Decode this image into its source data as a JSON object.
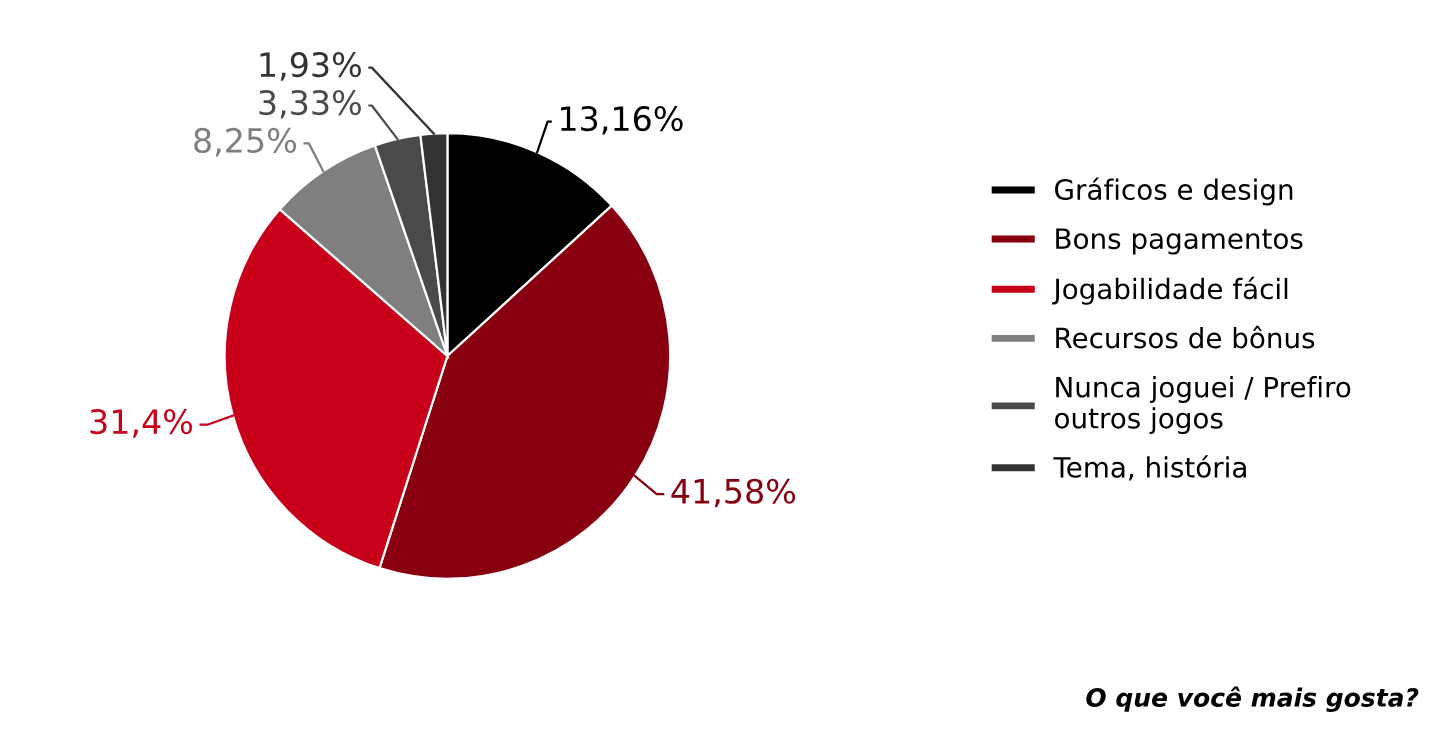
{
  "chart_data": {
    "type": "pie",
    "categories": [
      "Gráficos e design",
      "Bons pagamentos",
      "Jogabilidade fácil",
      "Recursos de bônus",
      "Nunca joguei / Prefiro\noutros jogos",
      "Tema, história"
    ],
    "values": [
      13.16,
      41.58,
      31.4,
      8.25,
      3.33,
      1.93
    ],
    "value_labels": [
      "13,16%",
      "41,58%",
      "31,4%",
      "8,25%",
      "3,33%",
      "1,93%"
    ],
    "colors": [
      "#000000",
      "#880010",
      "#c8001a",
      "#7f7f7f",
      "#4a4a4a",
      "#333333"
    ],
    "legend": "right",
    "annotations": [
      "O que você mais gosta?"
    ]
  }
}
